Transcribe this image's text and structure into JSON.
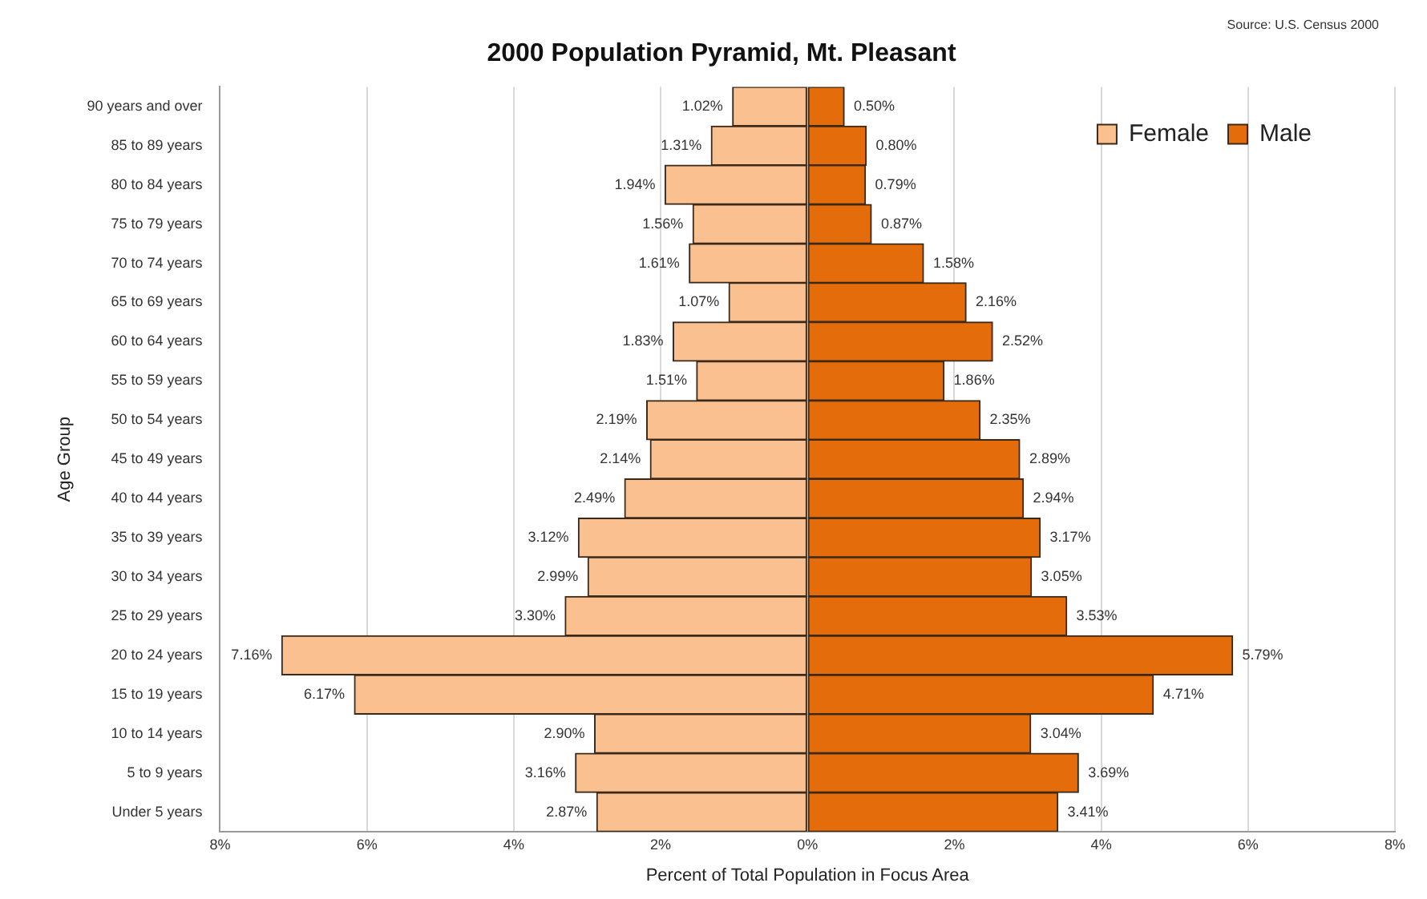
{
  "chart_data": {
    "type": "bar",
    "orientation": "horizontal",
    "title": "2000 Population Pyramid, Mt. Pleasant",
    "xlabel": "Percent of Total Population in Focus Area",
    "ylabel": "Age Group",
    "annotations": [
      "Source: U.S. Census 2000"
    ],
    "categories": [
      "90 years and over",
      "85 to 89 years",
      "80 to 84 years",
      "75 to 79 years",
      "70 to 74 years",
      "65 to 69 years",
      "60 to 64 years",
      "55 to 59 years",
      "50 to 54 years",
      "45 to 49 years",
      "40 to 44 years",
      "35 to 39 years",
      "30 to 34 years",
      "25 to 29 years",
      "20 to 24 years",
      "15 to 19 years",
      "10 to 14 years",
      "5 to 9 years",
      "Under 5 years"
    ],
    "series": [
      {
        "name": "Female",
        "color": "#fac090",
        "values": [
          1.02,
          1.31,
          1.94,
          1.56,
          1.61,
          1.07,
          1.83,
          1.51,
          2.19,
          2.14,
          2.49,
          3.12,
          2.99,
          3.3,
          7.16,
          6.17,
          2.9,
          3.16,
          2.87
        ],
        "base": [
          -1.02,
          -1.31,
          -1.94,
          -1.56,
          -1.61,
          -1.07,
          -1.83,
          -1.51,
          -2.19,
          -2.14,
          -2.49,
          -3.12,
          -2.99,
          -3.3,
          -7.16,
          -6.17,
          -2.9,
          -3.16,
          -2.87
        ],
        "value_labels": [
          "1.02%",
          "1.31%",
          "1.94%",
          "1.56%",
          "1.61%",
          "1.07%",
          "1.83%",
          "1.51%",
          "2.19%",
          "2.14%",
          "2.49%",
          "3.12%",
          "2.99%",
          "3.30%",
          "7.16%",
          "6.17%",
          "2.90%",
          "3.16%",
          "2.87%"
        ]
      },
      {
        "name": "Male",
        "color": "#e46c0a",
        "values": [
          0.5,
          0.8,
          0.79,
          0.87,
          1.58,
          2.16,
          2.52,
          1.86,
          2.35,
          2.89,
          2.94,
          3.17,
          3.05,
          3.53,
          5.79,
          4.71,
          3.04,
          3.69,
          3.41
        ],
        "value_labels": [
          "0.50%",
          "0.80%",
          "0.79%",
          "0.87%",
          "1.58%",
          "2.16%",
          "2.52%",
          "1.86%",
          "2.35%",
          "2.89%",
          "2.94%",
          "3.17%",
          "3.05%",
          "3.53%",
          "5.79%",
          "4.71%",
          "3.04%",
          "3.69%",
          "3.41%"
        ]
      }
    ],
    "xlim": [
      -8,
      8
    ],
    "xticks": [
      {
        "value": -8,
        "label": "8%"
      },
      {
        "value": -6,
        "label": "6%"
      },
      {
        "value": -4,
        "label": "4%"
      },
      {
        "value": -2,
        "label": "2%"
      },
      {
        "value": 0,
        "label": "0%"
      },
      {
        "value": 2,
        "label": "2%"
      },
      {
        "value": 4,
        "label": "4%"
      },
      {
        "value": 6,
        "label": "6%"
      },
      {
        "value": 8,
        "label": "8%"
      }
    ],
    "grid": "x",
    "legend": "top right"
  }
}
